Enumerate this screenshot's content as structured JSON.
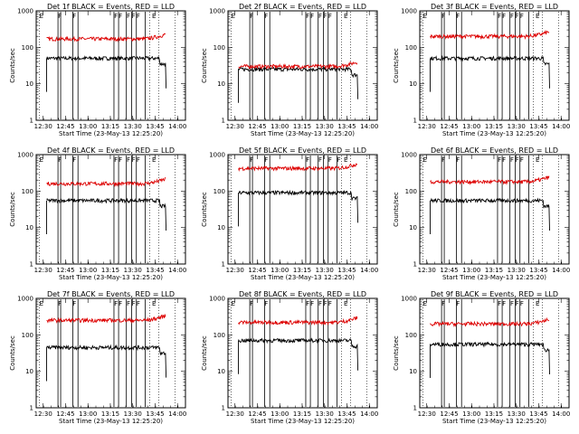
{
  "chart_data": [
    {
      "type": "line",
      "title": "Det 1f BLACK = Events, RED = LLD",
      "xlabel": "Start Time (23-May-13 12:25:20)",
      "ylabel": "Counts/sec",
      "yscale": "log",
      "ylim": [
        1,
        1000
      ],
      "xlim_minutes": [
        0,
        100
      ],
      "x_tick_labels": [
        "12:30",
        "12:45",
        "13:00",
        "13:15",
        "13:30",
        "13:45",
        "14:00"
      ],
      "y_tick_labels": [
        "1",
        "10",
        "100",
        "1000"
      ],
      "flag_letters": [
        "E",
        "F",
        "F",
        "F",
        "F",
        "F",
        "F",
        "F",
        "E"
      ],
      "series": [
        {
          "color": "#000000",
          "level": 50
        },
        {
          "color": "#dd0000",
          "level": 170
        }
      ],
      "grid": false
    },
    {
      "type": "line",
      "title": "Det 2f BLACK = Events, RED = LLD",
      "xlabel": "Start Time (23-May-13 12:25:20)",
      "ylabel": "Counts/sec",
      "yscale": "log",
      "ylim": [
        1,
        1000
      ],
      "xlim_minutes": [
        0,
        100
      ],
      "x_tick_labels": [
        "12:30",
        "12:45",
        "13:00",
        "13:15",
        "13:30",
        "13:45",
        "14:00"
      ],
      "y_tick_labels": [
        "1",
        "10",
        "100",
        "1000"
      ],
      "flag_letters": [
        "E",
        "F",
        "F",
        "F",
        "F",
        "F",
        "F",
        "F",
        "E"
      ],
      "series": [
        {
          "color": "#000000",
          "level": 25
        },
        {
          "color": "#dd0000",
          "level": 30
        }
      ],
      "grid": false
    },
    {
      "type": "line",
      "title": "Det 3f BLACK = Events, RED = LLD",
      "xlabel": "Start Time (23-May-13 12:25:20)",
      "ylabel": "Counts/sec",
      "yscale": "log",
      "ylim": [
        1,
        1000
      ],
      "xlim_minutes": [
        0,
        100
      ],
      "x_tick_labels": [
        "12:30",
        "12:45",
        "13:00",
        "13:15",
        "13:30",
        "13:45",
        "14:00"
      ],
      "y_tick_labels": [
        "1",
        "10",
        "100",
        "1000"
      ],
      "flag_letters": [
        "E",
        "F",
        "F",
        "F",
        "F",
        "F",
        "F",
        "F",
        "E"
      ],
      "series": [
        {
          "color": "#000000",
          "level": 50
        },
        {
          "color": "#dd0000",
          "level": 200
        }
      ],
      "grid": false
    },
    {
      "type": "line",
      "title": "Det 4f BLACK = Events, RED = LLD",
      "xlabel": "Start Time (23-May-13 12:25:20)",
      "ylabel": "Counts/sec",
      "yscale": "log",
      "ylim": [
        1,
        1000
      ],
      "xlim_minutes": [
        0,
        100
      ],
      "x_tick_labels": [
        "12:30",
        "12:45",
        "13:00",
        "13:15",
        "13:30",
        "13:45",
        "14:00"
      ],
      "y_tick_labels": [
        "1",
        "10",
        "100",
        "1000"
      ],
      "flag_letters": [
        "E",
        "F",
        "F",
        "F",
        "F",
        "F",
        "F",
        "F",
        "E"
      ],
      "series": [
        {
          "color": "#000000",
          "level": 55
        },
        {
          "color": "#dd0000",
          "level": 160
        }
      ],
      "grid": false
    },
    {
      "type": "line",
      "title": "Det 5f BLACK = Events, RED = LLD",
      "xlabel": "Start Time (23-May-13 12:25:20)",
      "ylabel": "Counts/sec",
      "yscale": "log",
      "ylim": [
        1,
        1000
      ],
      "xlim_minutes": [
        0,
        100
      ],
      "x_tick_labels": [
        "12:30",
        "12:45",
        "13:00",
        "13:15",
        "13:30",
        "13:45",
        "14:00"
      ],
      "y_tick_labels": [
        "1",
        "10",
        "100",
        "1000"
      ],
      "flag_letters": [
        "F",
        "F",
        "F",
        "F",
        "F",
        "F",
        "E"
      ],
      "series": [
        {
          "color": "#000000",
          "level": 90
        },
        {
          "color": "#dd0000",
          "level": 420
        }
      ],
      "grid": false
    },
    {
      "type": "line",
      "title": "Det 6f BLACK = Events, RED = LLD",
      "xlabel": "Start Time (23-May-13 12:25:20)",
      "ylabel": "Counts/sec",
      "yscale": "log",
      "ylim": [
        1,
        1000
      ],
      "xlim_minutes": [
        0,
        100
      ],
      "x_tick_labels": [
        "12:30",
        "12:45",
        "13:00",
        "13:15",
        "13:30",
        "13:45",
        "14:00"
      ],
      "y_tick_labels": [
        "1",
        "10",
        "100",
        "1000"
      ],
      "flag_letters": [
        "E",
        "F",
        "F",
        "F",
        "F",
        "F",
        "F",
        "F",
        "E"
      ],
      "series": [
        {
          "color": "#000000",
          "level": 55
        },
        {
          "color": "#dd0000",
          "level": 180
        }
      ],
      "grid": false
    },
    {
      "type": "line",
      "title": "Det 7f BLACK = Events, RED = LLD",
      "xlabel": "Start Time (23-May-13 12:25:20)",
      "ylabel": "Counts/sec",
      "yscale": "log",
      "ylim": [
        1,
        1000
      ],
      "xlim_minutes": [
        0,
        100
      ],
      "x_tick_labels": [
        "12:30",
        "12:45",
        "13:00",
        "13:15",
        "13:30",
        "13:45",
        "14:00"
      ],
      "y_tick_labels": [
        "1",
        "10",
        "100",
        "1000"
      ],
      "flag_letters": [
        "E",
        "F",
        "F",
        "F",
        "F",
        "F",
        "F",
        "F",
        "E"
      ],
      "series": [
        {
          "color": "#000000",
          "level": 45
        },
        {
          "color": "#dd0000",
          "level": 250
        }
      ],
      "grid": false
    },
    {
      "type": "line",
      "title": "Det 8f BLACK = Events, RED = LLD",
      "xlabel": "Start Time (23-May-13 12:25:20)",
      "ylabel": "Counts/sec",
      "yscale": "log",
      "ylim": [
        1,
        1000
      ],
      "xlim_minutes": [
        0,
        100
      ],
      "x_tick_labels": [
        "12:30",
        "12:45",
        "13:00",
        "13:15",
        "13:30",
        "13:45",
        "14:00"
      ],
      "y_tick_labels": [
        "1",
        "10",
        "100",
        "1000"
      ],
      "flag_letters": [
        "E",
        "F",
        "F",
        "F",
        "F",
        "F",
        "F",
        "F",
        "E"
      ],
      "series": [
        {
          "color": "#000000",
          "level": 70
        },
        {
          "color": "#dd0000",
          "level": 220
        }
      ],
      "grid": false
    },
    {
      "type": "line",
      "title": "Det 9f BLACK = Events, RED = LLD",
      "xlabel": "Start Time (23-May-13 12:25:20)",
      "ylabel": "Counts/sec",
      "yscale": "log",
      "ylim": [
        1,
        1000
      ],
      "xlim_minutes": [
        0,
        100
      ],
      "x_tick_labels": [
        "12:30",
        "12:45",
        "13:00",
        "13:15",
        "13:30",
        "13:45",
        "14:00"
      ],
      "y_tick_labels": [
        "1",
        "10",
        "100",
        "1000"
      ],
      "flag_letters": [
        "E",
        "F",
        "F",
        "F",
        "F",
        "F",
        "F",
        "F",
        "E"
      ],
      "series": [
        {
          "color": "#000000",
          "level": 55
        },
        {
          "color": "#dd0000",
          "level": 200
        }
      ],
      "grid": false
    }
  ]
}
